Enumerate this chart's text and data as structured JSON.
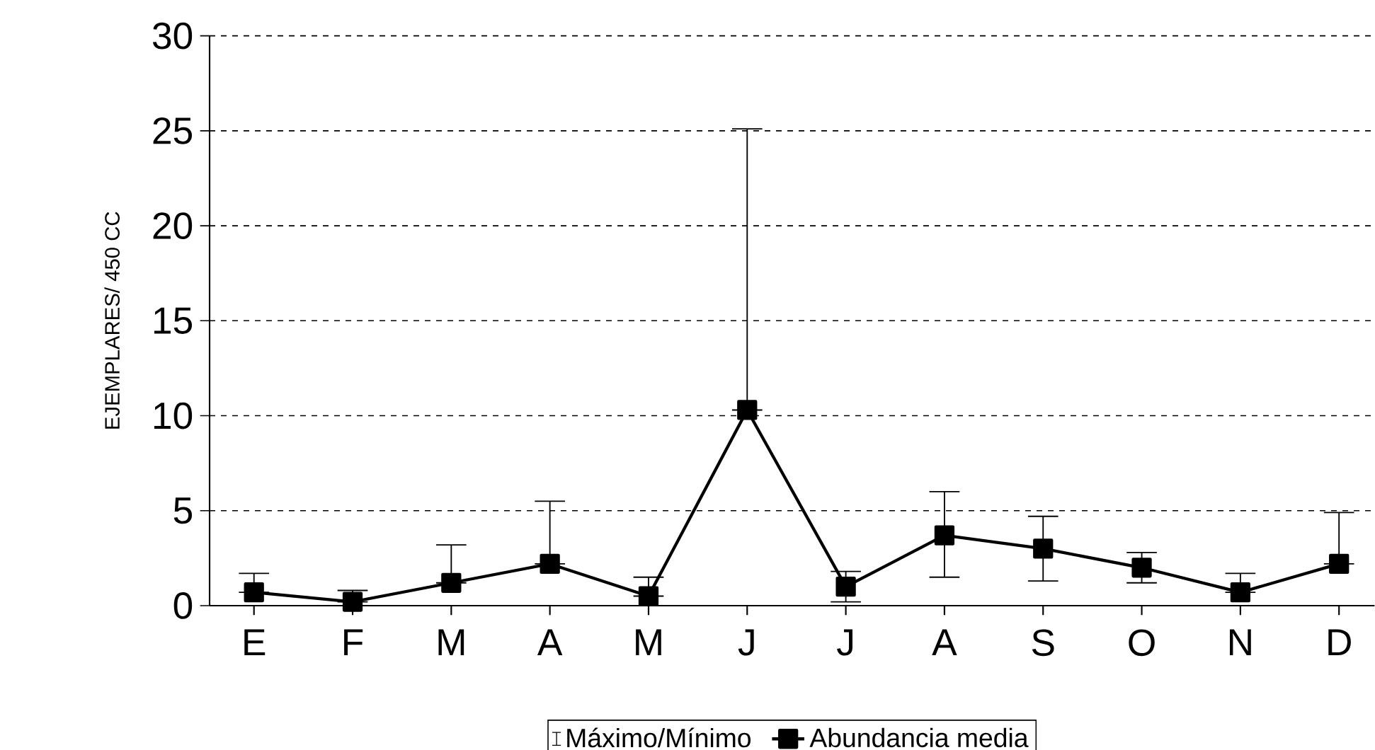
{
  "chart_data": {
    "type": "line",
    "ylabel": "EJEMPLARES/ 450 CC",
    "categories": [
      "E",
      "F",
      "M",
      "A",
      "M",
      "J",
      "J",
      "A",
      "S",
      "O",
      "N",
      "D"
    ],
    "series": [
      {
        "name": "Abundancia media",
        "color": "#000000",
        "values": [
          0.7,
          0.2,
          1.2,
          2.2,
          0.5,
          10.3,
          1.0,
          3.7,
          3.0,
          2.0,
          0.7,
          2.2
        ],
        "errors": [
          [
            0.7,
            1.7
          ],
          [
            0.2,
            0.8
          ],
          [
            1.2,
            3.2
          ],
          [
            2.2,
            5.5
          ],
          [
            0.5,
            1.5
          ],
          [
            10.3,
            25.1
          ],
          [
            0.2,
            1.8
          ],
          [
            1.5,
            6.0
          ],
          [
            1.3,
            4.7
          ],
          [
            1.2,
            2.8
          ],
          [
            0.7,
            1.7
          ],
          [
            2.2,
            4.9
          ]
        ]
      }
    ],
    "annotations": [
      "Máximo/Mínimo"
    ],
    "ylim": [
      0,
      30
    ],
    "yticks": [
      0,
      5,
      10,
      15,
      20,
      25,
      30
    ],
    "grid": "y",
    "legend": "bottom",
    "marker": "square",
    "line_style": "solid"
  }
}
